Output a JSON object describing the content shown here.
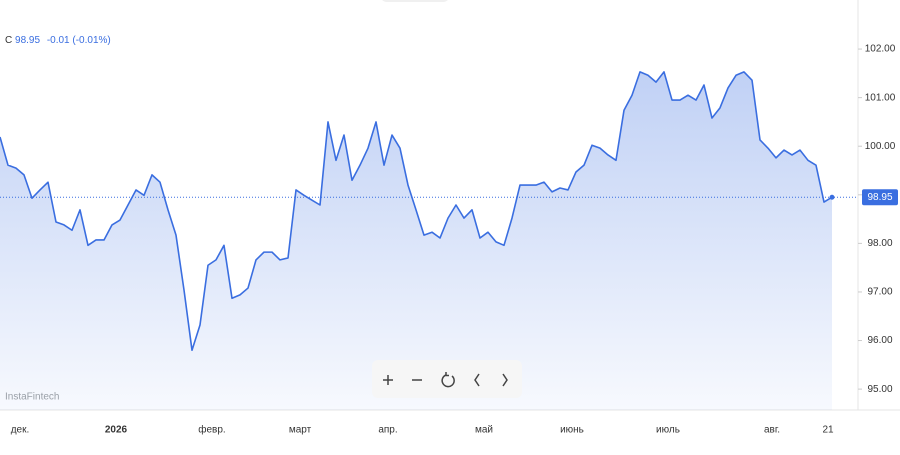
{
  "chart_data": {
    "type": "line",
    "legend": {
      "series_code": "C",
      "last": "98.95",
      "change": "-0.01 (-0.01%)"
    },
    "last_price_label": "98.95",
    "watermark": "InstaFintech",
    "categories": [
      null,
      null,
      "дек.",
      null,
      null,
      null,
      null,
      null,
      null,
      null,
      null,
      null,
      null,
      null,
      "2026",
      null,
      null,
      null,
      null,
      null,
      null,
      null,
      null,
      null,
      null,
      null,
      "февр.",
      null,
      null,
      null,
      null,
      null,
      null,
      null,
      null,
      null,
      null,
      "март",
      null,
      null,
      null,
      null,
      null,
      null,
      null,
      null,
      null,
      null,
      "апр.",
      null,
      null,
      null,
      null,
      null,
      null,
      null,
      null,
      null,
      null,
      null,
      "май",
      null,
      null,
      null,
      null,
      null,
      null,
      null,
      null,
      null,
      null,
      "июнь",
      null,
      null,
      null,
      null,
      null,
      null,
      null,
      null,
      null,
      null,
      null,
      "июль",
      null,
      null,
      null,
      null,
      null,
      null,
      null,
      null,
      null,
      null,
      null,
      null,
      "авг.",
      null,
      null,
      null,
      null,
      null,
      null,
      "21",
      null
    ],
    "series": [
      {
        "name": "C",
        "color": "#3a6ee0",
        "values": [
          100.19,
          99.61,
          99.55,
          99.41,
          98.93,
          99.1,
          99.26,
          98.44,
          98.38,
          98.27,
          98.69,
          97.96,
          98.07,
          98.07,
          98.38,
          98.48,
          98.79,
          99.1,
          98.99,
          99.41,
          99.26,
          98.69,
          98.17,
          97.04,
          95.8,
          96.32,
          97.55,
          97.66,
          97.96,
          96.87,
          96.94,
          97.08,
          97.66,
          97.82,
          97.82,
          97.66,
          97.7,
          99.1,
          98.99,
          98.89,
          98.79,
          100.5,
          99.71,
          100.23,
          99.3,
          99.61,
          99.96,
          100.5,
          99.61,
          100.23,
          99.96,
          99.2,
          98.69,
          98.17,
          98.23,
          98.11,
          98.52,
          98.79,
          98.52,
          98.69,
          98.11,
          98.23,
          98.03,
          97.96,
          98.52,
          99.2,
          99.2,
          99.2,
          99.26,
          99.06,
          99.14,
          99.1,
          99.47,
          99.61,
          100.02,
          99.96,
          99.82,
          99.71,
          100.74,
          101.05,
          101.53,
          101.46,
          101.32,
          101.53,
          100.95,
          100.95,
          101.05,
          100.95,
          101.26,
          100.58,
          100.79,
          101.2,
          101.46,
          101.53,
          101.36,
          100.13,
          99.96,
          99.76,
          99.92,
          99.82,
          99.92,
          99.71,
          99.61,
          98.85,
          98.95
        ]
      }
    ],
    "ylim": [
      94.57,
      103.01
    ],
    "yticks": [
      {
        "value": 95,
        "label": "95.00"
      },
      {
        "value": 96,
        "label": "96.00"
      },
      {
        "value": 97,
        "label": "97.00"
      },
      {
        "value": 98,
        "label": "98.00"
      },
      {
        "value": 99,
        "label": "99.00"
      },
      {
        "value": 100,
        "label": "100.00"
      },
      {
        "value": 101,
        "label": "101.00"
      },
      {
        "value": 102,
        "label": "102.00"
      }
    ],
    "grid": false
  }
}
